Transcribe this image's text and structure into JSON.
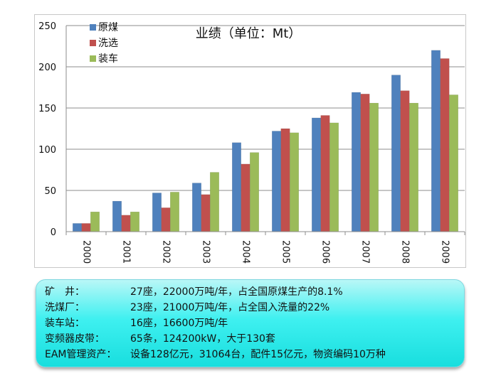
{
  "chart_data": {
    "type": "bar",
    "title": "业绩（单位：Mt）",
    "categories": [
      "2000",
      "2001",
      "2002",
      "2003",
      "2004",
      "2005",
      "2006",
      "2007",
      "2008",
      "2009"
    ],
    "series": [
      {
        "name": "原煤",
        "color": "#4f81bd",
        "values": [
          10,
          37,
          47,
          59,
          108,
          122,
          138,
          169,
          190,
          220
        ]
      },
      {
        "name": "洗选",
        "color": "#c0504d",
        "values": [
          10,
          20,
          29,
          45,
          82,
          125,
          141,
          167,
          171,
          210
        ]
      },
      {
        "name": "装车",
        "color": "#9bbb59",
        "values": [
          24,
          24,
          48,
          72,
          96,
          120,
          132,
          156,
          156,
          166
        ]
      }
    ],
    "ylim": [
      0,
      250
    ],
    "yticks": [
      0,
      50,
      100,
      150,
      200,
      250
    ],
    "grid": true,
    "legend": "top-left"
  },
  "info": [
    {
      "label": "矿　井：",
      "value": "27座，22000万吨/年，占全国原煤生产的8.1%"
    },
    {
      "label": "洗煤厂：",
      "value": "23座，21000万吨/年，占全国入洗量的22%"
    },
    {
      "label": "装车站：",
      "value": "16座，16600万吨/年"
    },
    {
      "label": "变频器皮带：",
      "value": "65条，124200kW，大于130套"
    },
    {
      "label": "EAM管理资产：",
      "value": "设备128亿元，31064台，配件15亿元，物资编码10万种"
    }
  ]
}
